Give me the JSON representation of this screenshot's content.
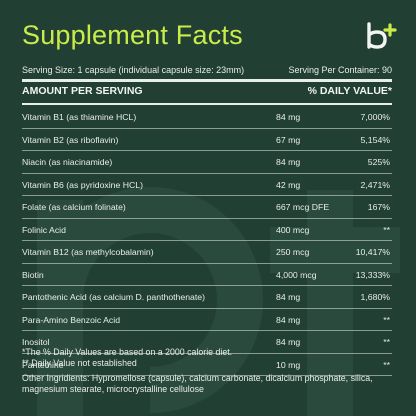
{
  "title": "Supplement Facts",
  "logo": {
    "icon": "b-plus-logo",
    "color": "#c9ec4a"
  },
  "serving": {
    "size": "Serving Size: 1 capsule (individual capsule size: 23mm)",
    "per_container": "Serving Per Container: 90"
  },
  "header": {
    "amount": "AMOUNT PER SERVING",
    "dv": "% DAILY VALUE*"
  },
  "rows": [
    {
      "name": "Vitamin B1 (as thiamine HCL)",
      "amount": "84 mg",
      "dv": "7,000%"
    },
    {
      "name": "Vitamin B2 (as riboflavin)",
      "amount": "67 mg",
      "dv": "5,154%"
    },
    {
      "name": "Niacin (as niacinamide)",
      "amount": "84 mg",
      "dv": "525%"
    },
    {
      "name": "Vitamin B6 (as pyridoxine HCL)",
      "amount": "42 mg",
      "dv": "2,471%"
    },
    {
      "name": "Folate (as calcium folinate)",
      "amount": "667 mcg DFE",
      "dv": "167%"
    },
    {
      "name": "Folinic Acid",
      "amount": "400 mcg",
      "dv": "**"
    },
    {
      "name": "Vitamin B12 (as methylcobalamin)",
      "amount": "250 mcg",
      "dv": "10,417%"
    },
    {
      "name": "Biotin",
      "amount": "4,000 mcg",
      "dv": "13,333%"
    },
    {
      "name": "Pantothenic Acid (as calcium D. panthothenate)",
      "amount": "84 mg",
      "dv": "1,680%"
    },
    {
      "name": "Para-Amino Benzoic Acid",
      "amount": "84 mg",
      "dv": "**"
    },
    {
      "name": "Inositol",
      "amount": "84 mg",
      "dv": "**"
    },
    {
      "name": "Pantethine",
      "amount": "10 mg",
      "dv": "**"
    }
  ],
  "footnotes": {
    "dv_note": "*The % Daily Values are based on a 2000 calorie diet.",
    "not_established": "** Daily Value not established",
    "other_ingredients": "Other Ingridients: Hypromellose (capsule), calcium carbonate, dicalcium phosphate, silica, magnesium stearate, microcrystalline cellulose"
  },
  "colors": {
    "background": "#223f34",
    "accent": "#c9ec4a",
    "text": "#e8eee9"
  }
}
